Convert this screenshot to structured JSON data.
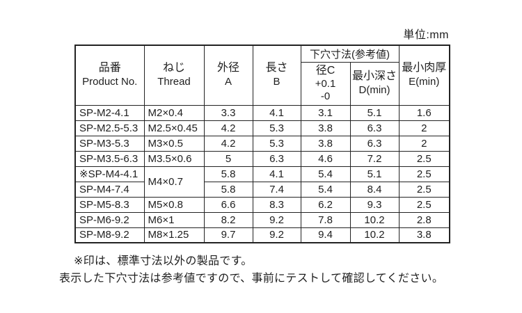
{
  "unit_label": "単位:mm",
  "table": {
    "header": {
      "product": {
        "jp": "品番",
        "en": "Product No."
      },
      "thread": {
        "jp": "ねじ",
        "en": "Thread"
      },
      "outer_dia": {
        "jp": "外径",
        "en": "A"
      },
      "length": {
        "jp": "長さ",
        "en": "B"
      },
      "pilot_hole_group": "下穴寸法(参考値)",
      "hole_dia": {
        "jp": "径C",
        "tol_plus": "+0.1",
        "tol_minus": "-0"
      },
      "min_depth": {
        "jp": "最小深さ",
        "en": "D(min)"
      },
      "min_wall": {
        "jp": "最小肉厚",
        "en": "E(min)"
      }
    },
    "rows": [
      {
        "product_no": "SP-M2-4.1",
        "thread": "M2×0.4",
        "a": "3.3",
        "b": "4.1",
        "c": "3.1",
        "d": "5.1",
        "e": "1.6"
      },
      {
        "product_no": "SP-M2.5-5.3",
        "thread": "M2.5×0.45",
        "a": "4.2",
        "b": "5.3",
        "c": "3.8",
        "d": "6.3",
        "e": "2"
      },
      {
        "product_no": "SP-M3-5.3",
        "thread": "M3×0.5",
        "a": "4.2",
        "b": "5.3",
        "c": "3.8",
        "d": "6.3",
        "e": "2"
      },
      {
        "product_no": "SP-M3.5-6.3",
        "thread": "M3.5×0.6",
        "a": "5",
        "b": "6.3",
        "c": "4.6",
        "d": "7.2",
        "e": "2.5"
      },
      {
        "product_no": "※SP-M4-4.1",
        "thread": "M4×0.7",
        "thread_rowspan": 2,
        "a": "5.8",
        "b": "4.1",
        "c": "5.4",
        "d": "5.1",
        "e": "2.5"
      },
      {
        "product_no": "SP-M4-7.4",
        "thread": null,
        "a": "5.8",
        "b": "7.4",
        "c": "5.4",
        "d": "8.4",
        "e": "2.5"
      },
      {
        "product_no": "SP-M5-8.3",
        "thread": "M5×0.8",
        "a": "6.6",
        "b": "8.3",
        "c": "6.2",
        "d": "9.3",
        "e": "2.5"
      },
      {
        "product_no": "SP-M6-9.2",
        "thread": "M6×1",
        "a": "8.2",
        "b": "9.2",
        "c": "7.8",
        "d": "10.2",
        "e": "2.8"
      },
      {
        "product_no": "SP-M8-9.2",
        "thread": "M8×1.25",
        "a": "9.7",
        "b": "9.2",
        "c": "9.4",
        "d": "10.2",
        "e": "3.8"
      }
    ]
  },
  "notes": [
    "※印は、標準寸法以外の製品です。",
    "表示した下穴寸法は参考値ですので、事前にテストして確認してください。"
  ]
}
